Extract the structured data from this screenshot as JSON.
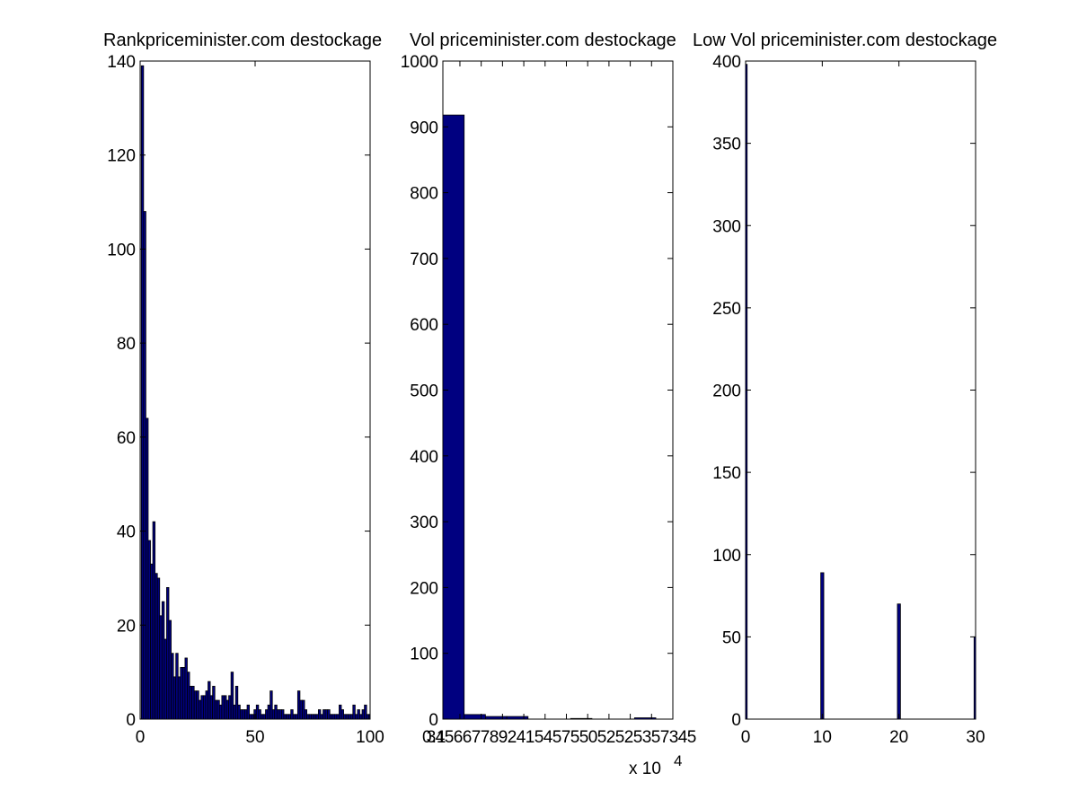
{
  "colors": {
    "bar_fill": "#000080",
    "bar_edge": "#000000",
    "axes": "#000000",
    "background": "#ffffff"
  },
  "chart_data": [
    {
      "type": "bar",
      "title": "Rankpriceminister.com destockage",
      "xlim": [
        0,
        100
      ],
      "ylim": [
        0,
        140
      ],
      "xticks": [
        "0",
        "50",
        "100"
      ],
      "yticks": [
        "0",
        "20",
        "40",
        "60",
        "80",
        "100",
        "120",
        "140"
      ],
      "bin_width": 1,
      "bin_centers": [
        1,
        2,
        3,
        4,
        5,
        6,
        7,
        8,
        9,
        10,
        11,
        12,
        13,
        14,
        15,
        16,
        17,
        18,
        19,
        20,
        21,
        22,
        23,
        24,
        25,
        26,
        27,
        28,
        29,
        30,
        31,
        32,
        33,
        34,
        35,
        36,
        37,
        38,
        39,
        40,
        41,
        42,
        43,
        44,
        45,
        46,
        47,
        48,
        49,
        50,
        51,
        52,
        53,
        54,
        55,
        56,
        57,
        58,
        59,
        60,
        61,
        62,
        63,
        64,
        65,
        66,
        67,
        68,
        69,
        70,
        71,
        72,
        73,
        74,
        75,
        76,
        77,
        78,
        79,
        80,
        81,
        82,
        83,
        84,
        85,
        86,
        87,
        88,
        89,
        90,
        91,
        92,
        93,
        94,
        95,
        96,
        97,
        98,
        99,
        100
      ],
      "values": [
        139,
        108,
        64,
        38,
        33,
        42,
        31,
        30,
        22,
        25,
        17,
        28,
        21,
        14,
        9,
        14,
        9,
        11,
        11,
        13,
        10,
        7,
        7,
        6,
        6,
        4,
        5,
        5,
        6,
        8,
        5,
        7,
        4,
        4,
        3,
        5,
        5,
        4,
        5,
        10,
        3,
        7,
        3,
        2,
        2,
        2,
        3,
        1,
        1,
        2,
        3,
        2,
        1,
        1,
        2,
        3,
        6,
        2,
        3,
        2,
        2,
        2,
        1,
        1,
        1,
        2,
        1,
        1,
        6,
        4,
        4,
        2,
        1,
        1,
        1,
        1,
        1,
        2,
        1,
        2,
        2,
        2,
        1,
        1,
        1,
        1,
        3,
        2,
        1,
        1,
        1,
        1,
        3,
        1,
        2,
        1,
        2,
        3,
        1,
        1
      ]
    },
    {
      "type": "bar",
      "title": "Vol priceminister.com destockage",
      "xlim": [
        0.1,
        5.5
      ],
      "ylim": [
        0,
        1000
      ],
      "xticks": [
        "0.1",
        "3",
        "4",
        "5",
        "6",
        "6",
        "7",
        "7",
        "8",
        "9",
        "2",
        "4",
        "1",
        "5",
        "4",
        "5",
        "7",
        "5",
        "5",
        "0",
        "5",
        "2",
        "5",
        "2",
        "5",
        "3",
        "5",
        "7",
        "3",
        "4",
        "5"
      ],
      "x_exponent_label": "x 10",
      "x_exponent_power": "4",
      "yticks": [
        "0",
        "100",
        "200",
        "300",
        "400",
        "500",
        "600",
        "700",
        "800",
        "900",
        "1000"
      ],
      "bin_width": 0.5,
      "bin_centers": [
        0.35,
        0.85,
        1.35,
        1.85,
        2.35,
        2.85,
        3.35,
        3.85,
        4.35,
        4.85
      ],
      "values": [
        918,
        7,
        4,
        4,
        0,
        0,
        1,
        0,
        0,
        2
      ]
    },
    {
      "type": "bar",
      "title": "Low Vol priceminister.com destockage",
      "xlim": [
        0,
        30
      ],
      "ylim": [
        0,
        400
      ],
      "xticks": [
        "0",
        "10",
        "20",
        "30"
      ],
      "yticks": [
        "0",
        "50",
        "100",
        "150",
        "200",
        "250",
        "300",
        "350",
        "400"
      ],
      "bin_width": 0.4,
      "bin_centers": [
        0,
        10,
        20,
        30
      ],
      "values": [
        398,
        89,
        70,
        50
      ]
    }
  ]
}
